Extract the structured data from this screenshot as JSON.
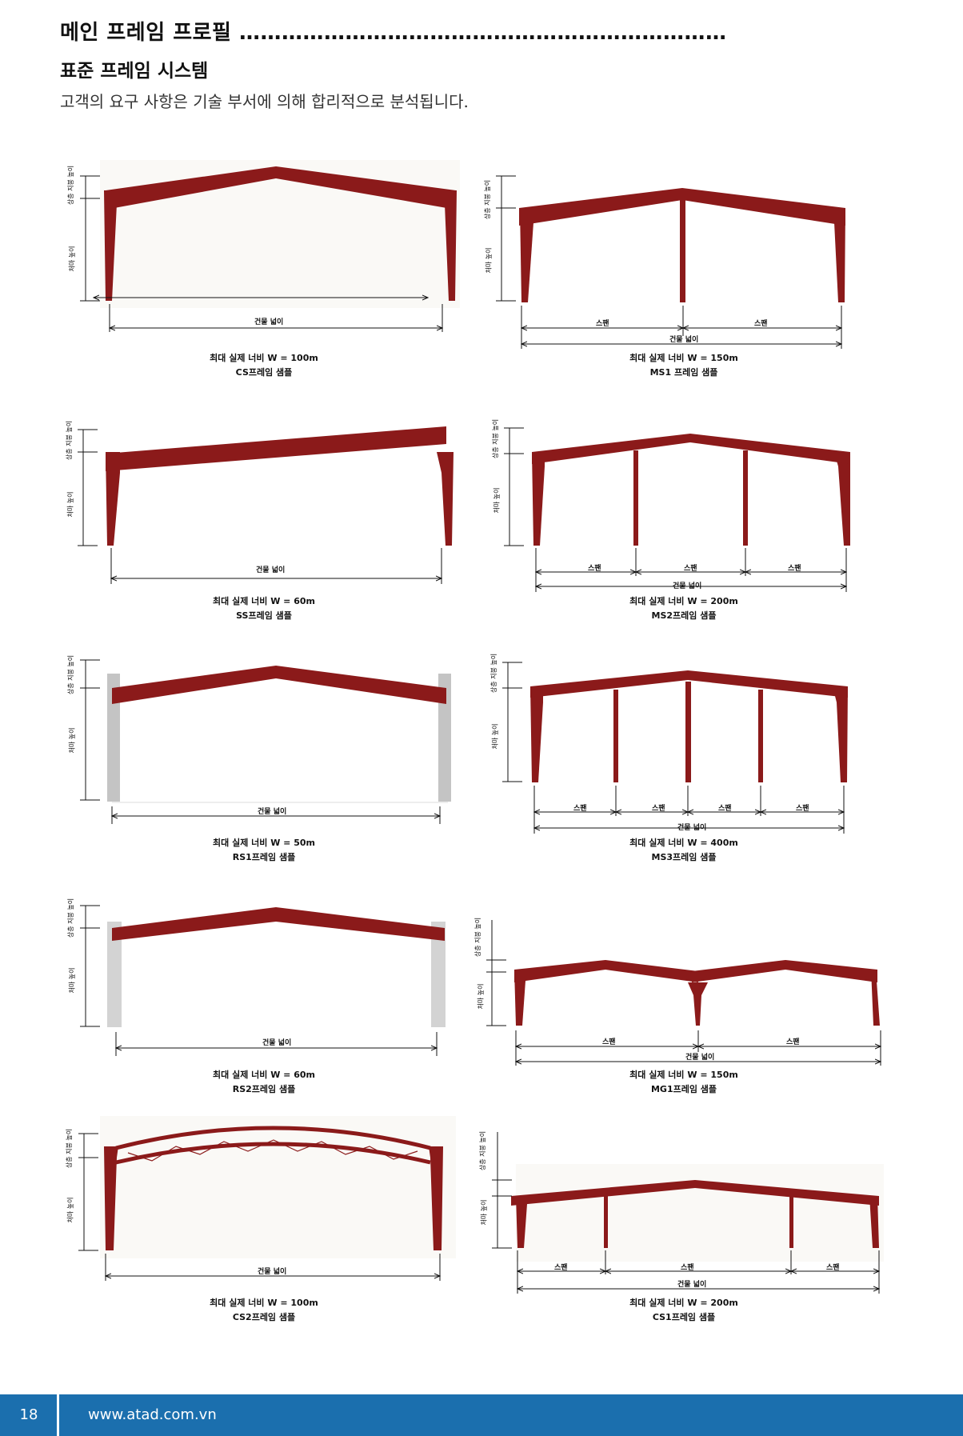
{
  "header": {
    "title": "메인 프레임 프로필 ……………………………………………………………",
    "subtitle": "표준 프레임 시스템",
    "intro": "고객의 요구 사항은 기술 부서에 의해 합리적으로 분석됩니다."
  },
  "common_labels": {
    "roof_height": "상층 지붕 높이",
    "eave_height": "처마 높이",
    "building_width": "건물 넓이",
    "span": "스팬"
  },
  "frames": [
    {
      "id": "cs",
      "max_width": "최대 실제 너비 W = 100m",
      "name": "CS프레임 샘플"
    },
    {
      "id": "ms1",
      "max_width": "최대 실제 너비 W = 150m",
      "name": "MS1 프레임 샘플"
    },
    {
      "id": "ss",
      "max_width": "최대 실제 너비 W = 60m",
      "name": "SS프레임 샘플"
    },
    {
      "id": "ms2",
      "max_width": "최대 실제 너비  W = 200m",
      "name": "MS2프레임 샘플"
    },
    {
      "id": "rs1",
      "max_width": "최대 실제 너비  W = 50m",
      "name": "RS1프레임 샘플"
    },
    {
      "id": "ms3",
      "max_width": "최대 실제 너비  W = 400m",
      "name": "MS3프레임 샘플"
    },
    {
      "id": "rs2",
      "max_width": "최대 실제 너비 W = 60m",
      "name": "RS2프레임 샘플"
    },
    {
      "id": "mg1",
      "max_width": "최대 실제 너비  W = 150m",
      "name": "MG1프레임 샘플"
    },
    {
      "id": "cs2",
      "max_width": "최대 실제 너비 W  = 100m",
      "name": "CS2프레임 샘플"
    },
    {
      "id": "cs1",
      "max_width": "최대 실제 너비  W = 200m",
      "name": "CS1프레임 샘플"
    }
  ],
  "colors": {
    "frame": "#8b1a1a",
    "concrete": "#c4c4c4",
    "footer": "#1b6fae"
  },
  "footer": {
    "page_number": "18",
    "url": "www.atad.com.vn"
  }
}
